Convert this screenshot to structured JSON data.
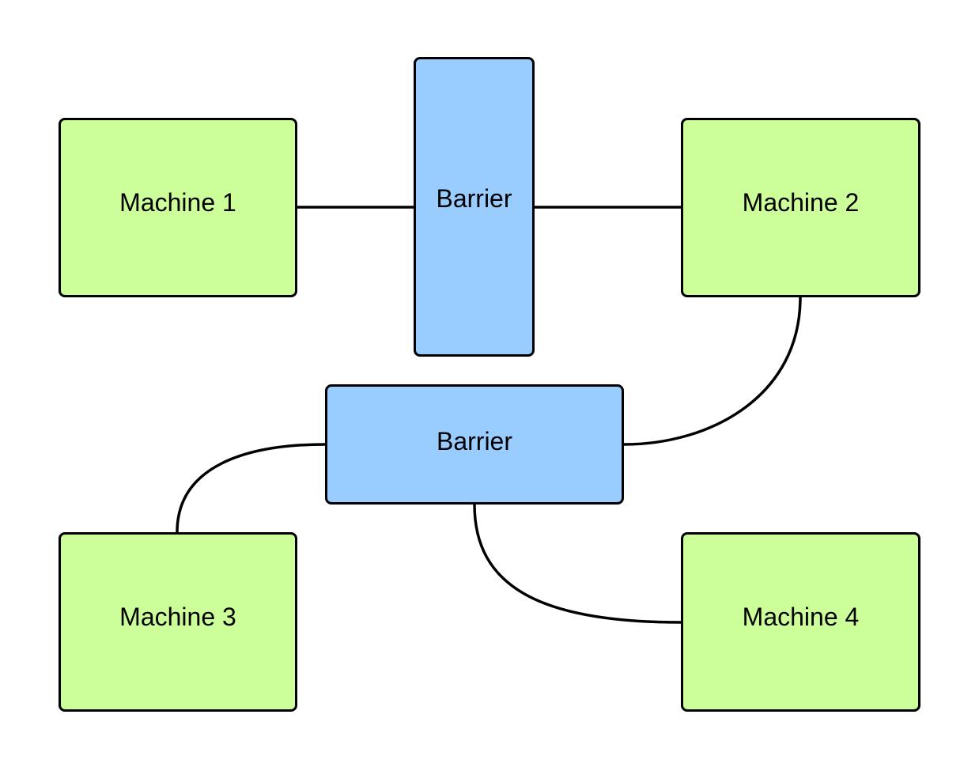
{
  "diagram": {
    "nodes": {
      "machine_1": {
        "label": "Machine 1",
        "kind": "machine"
      },
      "machine_2": {
        "label": "Machine 2",
        "kind": "machine"
      },
      "machine_3": {
        "label": "Machine 3",
        "kind": "machine"
      },
      "machine_4": {
        "label": "Machine 4",
        "kind": "machine"
      },
      "barrier_top": {
        "label": "Barrier",
        "kind": "barrier"
      },
      "barrier_middle": {
        "label": "Barrier",
        "kind": "barrier"
      }
    },
    "edges": [
      {
        "from": "machine_1",
        "to": "barrier_top"
      },
      {
        "from": "barrier_top",
        "to": "machine_2"
      },
      {
        "from": "machine_2",
        "to": "barrier_middle"
      },
      {
        "from": "barrier_middle",
        "to": "machine_3"
      },
      {
        "from": "barrier_middle",
        "to": "machine_4"
      }
    ],
    "colors": {
      "machine_fill": "#ccff99",
      "barrier_fill": "#99ccff",
      "stroke": "#000000",
      "background": "#ffffff"
    }
  }
}
